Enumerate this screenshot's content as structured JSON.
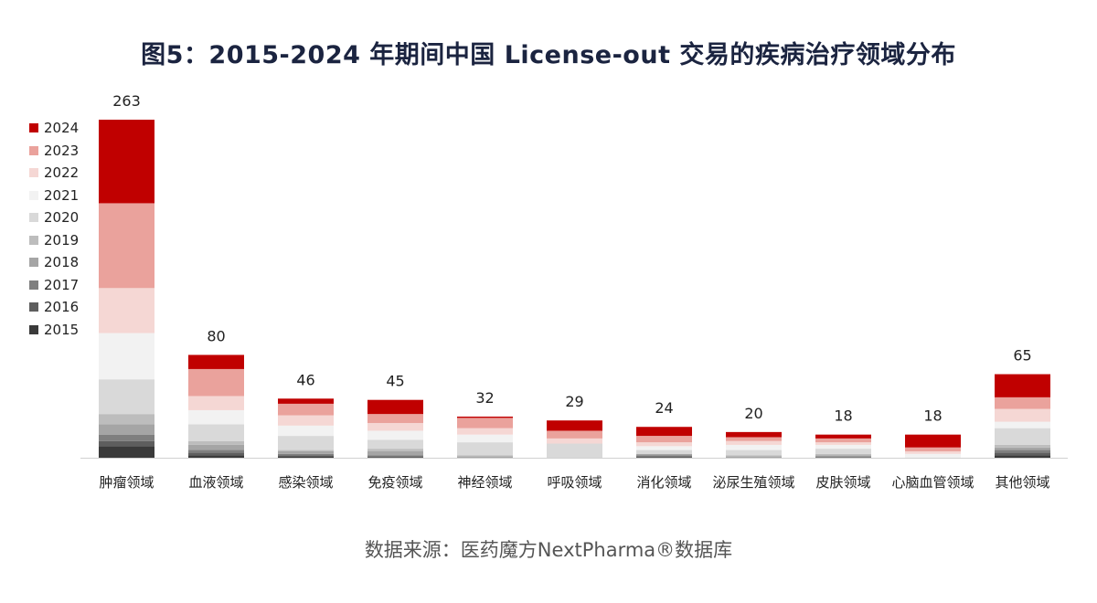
{
  "title": "图5：2015-2024 年期间中国 License-out 交易的疾病治疗领域分布",
  "source": "数据来源：医药魔方NextPharma®数据库",
  "colors": {
    "2015": "#3a3a3a",
    "2016": "#5e5e5e",
    "2017": "#7f7f7f",
    "2018": "#a5a5a5",
    "2019": "#bdbdbd",
    "2020": "#d9d9d9",
    "2021": "#f2f2f2",
    "2022": "#f5d7d4",
    "2023": "#eaa29c",
    "2024": "#c00000"
  },
  "chart_data": {
    "type": "bar",
    "stacked": true,
    "title": "图5：2015-2024 年期间中国 License-out 交易的疾病治疗领域分布",
    "xlabel": "",
    "ylabel": "",
    "ylim": [
      0,
      263
    ],
    "grid": false,
    "legend_position": "left",
    "categories": [
      "肿瘤领域",
      "血液领域",
      "感染领域",
      "免疫领域",
      "神经领域",
      "呼吸领域",
      "消化领域",
      "泌尿生殖领域",
      "皮肤领域",
      "心脑血管领域",
      "其他领域"
    ],
    "totals": [
      263,
      80,
      46,
      45,
      32,
      29,
      24,
      20,
      18,
      18,
      65
    ],
    "series": [
      {
        "name": "2015",
        "values": [
          9,
          2,
          1,
          0,
          0,
          0,
          0,
          0,
          0,
          0,
          2
        ]
      },
      {
        "name": "2016",
        "values": [
          4,
          2,
          1,
          1,
          0,
          0,
          1,
          0,
          0,
          0,
          2
        ]
      },
      {
        "name": "2017",
        "values": [
          5,
          2,
          1,
          1,
          0,
          0,
          1,
          0,
          1,
          0,
          2
        ]
      },
      {
        "name": "2018",
        "values": [
          8,
          4,
          2,
          3,
          1,
          0,
          1,
          1,
          1,
          0,
          2
        ]
      },
      {
        "name": "2019",
        "values": [
          8,
          3,
          1,
          2,
          1,
          0,
          0,
          1,
          1,
          0,
          2
        ]
      },
      {
        "name": "2020",
        "values": [
          27,
          13,
          11,
          7,
          10,
          11,
          3,
          4,
          4,
          0,
          13
        ]
      },
      {
        "name": "2021",
        "values": [
          36,
          11,
          8,
          7,
          6,
          0,
          3,
          4,
          3,
          3,
          5
        ]
      },
      {
        "name": "2022",
        "values": [
          35,
          11,
          8,
          6,
          5,
          4,
          3,
          3,
          2,
          2,
          10
        ]
      },
      {
        "name": "2023",
        "values": [
          66,
          21,
          9,
          7,
          8,
          6,
          5,
          3,
          3,
          3,
          9
        ]
      },
      {
        "name": "2024",
        "values": [
          65,
          11,
          4,
          11,
          1,
          8,
          7,
          4,
          3,
          10,
          18
        ]
      }
    ]
  }
}
